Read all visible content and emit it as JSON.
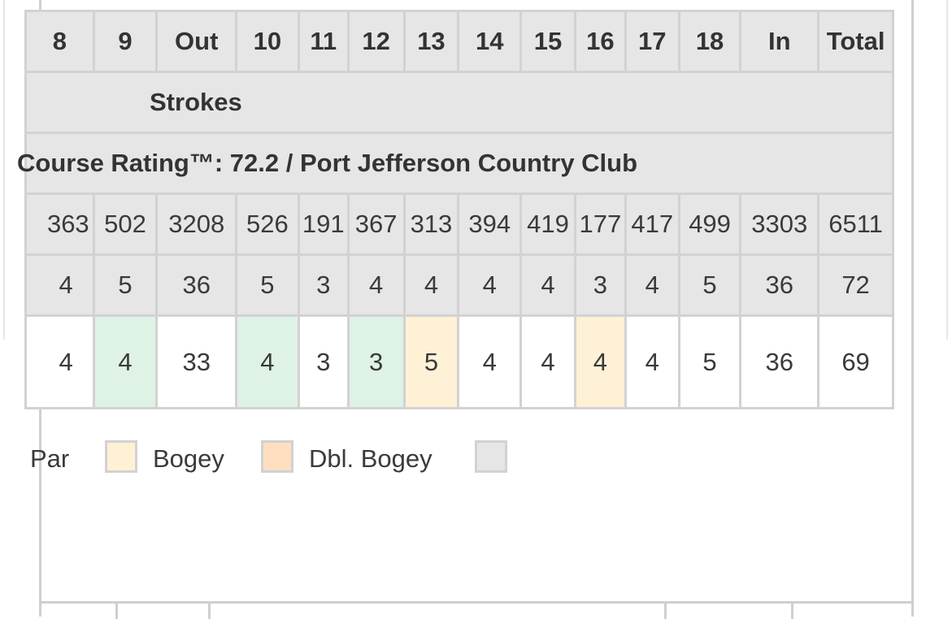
{
  "scorecard": {
    "holes_header": [
      "8",
      "9",
      "Out",
      "10",
      "11",
      "12",
      "13",
      "14",
      "15",
      "16",
      "17",
      "18",
      "In",
      "Total"
    ],
    "section_label": "Strokes",
    "course_rating": "Course Rating™: 72.2 / Port Jefferson Country Club",
    "yardages": [
      "363",
      "502",
      "3208",
      "526",
      "191",
      "367",
      "313",
      "394",
      "419",
      "177",
      "417",
      "499",
      "3303",
      "6511"
    ],
    "pars": [
      "4",
      "5",
      "36",
      "5",
      "3",
      "4",
      "4",
      "4",
      "4",
      "3",
      "4",
      "5",
      "36",
      "72"
    ],
    "strokes": [
      "4",
      "4",
      "33",
      "4",
      "3",
      "3",
      "5",
      "4",
      "4",
      "4",
      "4",
      "5",
      "36",
      "69"
    ]
  },
  "legend": {
    "par_label": "Par",
    "bogey_label": "Bogey",
    "double_bogey_label": "Dbl. Bogey"
  },
  "colors": {
    "birdie": "#dff2e6",
    "bogey": "#fff1d6",
    "double_bogey": "#ffdfc0",
    "header_bg": "#e6e6e6",
    "border": "#d2d2d2"
  }
}
